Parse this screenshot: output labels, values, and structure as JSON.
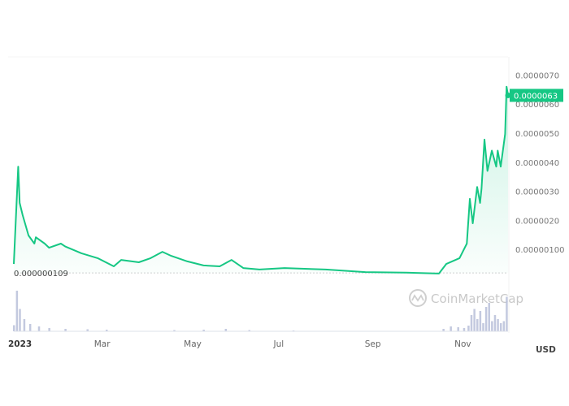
{
  "chart_data": {
    "type": "area",
    "title": "",
    "xlabel": "",
    "ylabel": "",
    "currency_label": "USD",
    "watermark": "CoinMarketCap",
    "line_color": "#16c784",
    "x_range": [
      "2023-01-01",
      "2023-12-03"
    ],
    "ylim": [
      0,
      7.2e-06
    ],
    "y_ticks": [
      "0.0000070",
      "0.0000060",
      "0.0000050",
      "0.0000040",
      "0.0000030",
      "0.0000020",
      "0.00000100"
    ],
    "x_ticks": [
      {
        "label": "2023",
        "date": "2023-01-01"
      },
      {
        "label": "Mar",
        "date": "2023-03-01"
      },
      {
        "label": "May",
        "date": "2023-05-01"
      },
      {
        "label": "Jul",
        "date": "2023-07-01"
      },
      {
        "label": "Sep",
        "date": "2023-09-01"
      },
      {
        "label": "Nov",
        "date": "2023-11-01"
      }
    ],
    "current_price_label": "0.0000063",
    "current_price": 6.3e-06,
    "baseline_label": "0.000000109",
    "baseline_value": 1.09e-07,
    "grid": false,
    "series": [
      {
        "x": [
          "2023-01-01",
          "2023-01-04",
          "2023-01-05",
          "2023-01-07",
          "2023-01-11",
          "2023-01-15",
          "2023-01-16",
          "2023-01-22",
          "2023-01-25",
          "2023-02-02",
          "2023-02-05",
          "2023-02-16",
          "2023-02-27",
          "2023-03-10",
          "2023-03-15",
          "2023-03-27",
          "2023-04-04",
          "2023-04-12",
          "2023-04-18",
          "2023-04-29",
          "2023-05-10",
          "2023-05-21",
          "2023-05-29",
          "2023-06-06",
          "2023-06-17",
          "2023-07-04",
          "2023-08-01",
          "2023-08-28",
          "2023-09-25",
          "2023-10-17",
          "2023-10-22",
          "2023-10-31",
          "2023-11-05",
          "2023-11-07",
          "2023-11-09",
          "2023-11-12",
          "2023-11-14",
          "2023-11-15",
          "2023-11-17",
          "2023-11-19",
          "2023-11-22",
          "2023-11-25",
          "2023-11-26",
          "2023-11-28",
          "2023-12-01",
          "2023-12-02",
          "2023-12-03"
        ],
        "y": [
          5e-07,
          3.85e-06,
          2.6e-06,
          2.18e-06,
          1.48e-06,
          1.2e-06,
          1.42e-06,
          1.2e-06,
          1.06e-06,
          1.2e-06,
          1.1e-06,
          8.7e-07,
          7e-07,
          4.2e-07,
          6.4e-07,
          5.6e-07,
          7e-07,
          9.2e-07,
          7.8e-07,
          5.9e-07,
          4.5e-07,
          4.2e-07,
          6.4e-07,
          3.6e-07,
          3.1e-07,
          3.6e-07,
          3.1e-07,
          2.2e-07,
          2e-07,
          1.7e-07,
          5e-07,
          7e-07,
          1.2e-06,
          2.74e-06,
          1.9e-06,
          3.15e-06,
          2.6e-06,
          3.1e-06,
          4.78e-06,
          3.7e-06,
          4.4e-06,
          3.85e-06,
          4.4e-06,
          3.85e-06,
          4.97e-06,
          6.6e-06,
          6.3e-06
        ]
      }
    ],
    "volume": {
      "unit": "relative",
      "x": [
        "2023-01-01",
        "2023-01-03",
        "2023-01-05",
        "2023-01-08",
        "2023-01-12",
        "2023-01-18",
        "2023-01-25",
        "2023-02-05",
        "2023-02-20",
        "2023-03-05",
        "2023-04-20",
        "2023-05-10",
        "2023-05-25",
        "2023-06-10",
        "2023-07-10",
        "2023-10-20",
        "2023-10-25",
        "2023-10-30",
        "2023-11-03",
        "2023-11-06",
        "2023-11-08",
        "2023-11-10",
        "2023-11-12",
        "2023-11-14",
        "2023-11-16",
        "2023-11-18",
        "2023-11-20",
        "2023-11-22",
        "2023-11-24",
        "2023-11-26",
        "2023-11-28",
        "2023-11-30",
        "2023-12-02"
      ],
      "values": [
        15,
        100,
        55,
        30,
        18,
        12,
        8,
        6,
        5,
        4,
        3,
        4,
        6,
        3,
        2,
        6,
        12,
        10,
        8,
        14,
        40,
        55,
        30,
        50,
        20,
        60,
        70,
        25,
        40,
        30,
        20,
        25,
        85
      ]
    }
  }
}
